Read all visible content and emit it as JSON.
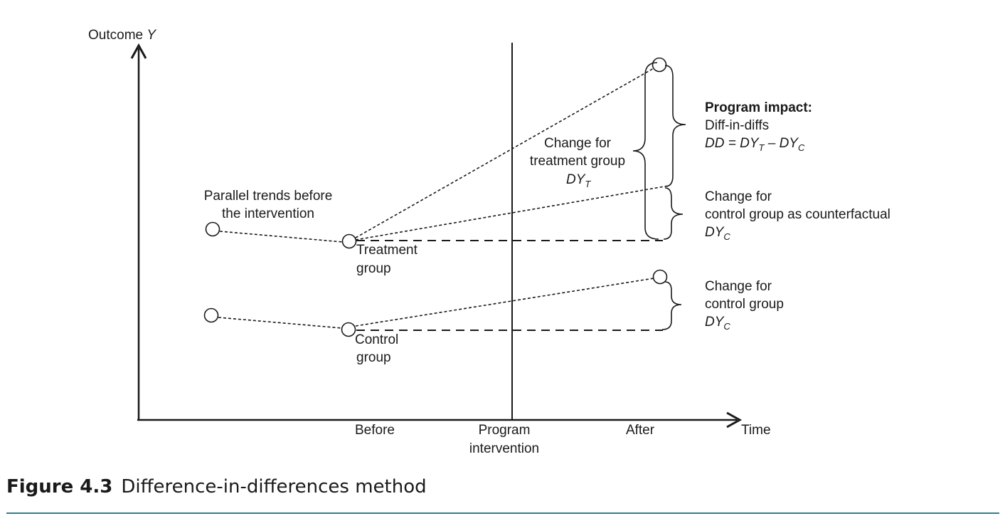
{
  "axes": {
    "y_label": "Outcome",
    "y_symbol": "Y",
    "x_label": "Time",
    "x_ticks": {
      "before": "Before",
      "program_line1": "Program",
      "program_line2": "intervention",
      "after": "After"
    }
  },
  "annotations": {
    "parallel_line1": "Parallel trends before",
    "parallel_line2": "the intervention",
    "treatment_line1": "Treatment",
    "treatment_line2": "group",
    "control_line1": "Control",
    "control_line2": "group",
    "change_treat_line1": "Change for",
    "change_treat_line2": "treatment group",
    "change_treat_sym": "DY",
    "change_treat_sub": "T",
    "impact_title": "Program impact:",
    "impact_line2": "Diff-in-diffs",
    "impact_formula_pre": "DD = DY",
    "impact_formula_sub1": "T",
    "impact_formula_mid": " – DY",
    "impact_formula_sub2": "C",
    "counterfactual_line1": "Change for",
    "counterfactual_line2": "control group as counterfactual",
    "counterfactual_sym": "DY",
    "counterfactual_sub": "C",
    "control_change_line1": "Change for",
    "control_change_line2": "control group",
    "control_change_sym": "DY",
    "control_change_sub": "C"
  },
  "caption": {
    "figure_number": "Figure 4.3",
    "title": "Difference-in-differences method"
  },
  "colors": {
    "ink": "#1a1a1a",
    "rule": "#2f7f8f"
  }
}
